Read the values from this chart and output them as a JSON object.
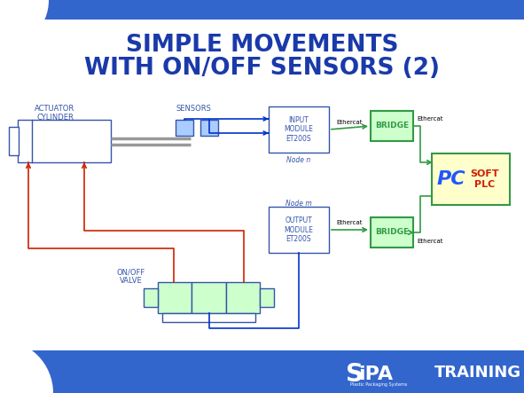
{
  "title_line1": "SIMPLE MOVEMENTS",
  "title_line2": "WITH ON/OFF SENSORS (2)",
  "title_color": "#1a3aaa",
  "bg_color": "#ffffff",
  "blue_banner_color": "#3366cc",
  "actuator_label": "ACTUATOR\nCYLINDER",
  "sensors_label": "SENSORS",
  "input_module_label": "INPUT\nMODULE\nET200S",
  "output_module_label": "OUTPUT\nMODULE\nET200S",
  "bridge_label": "BRIDGE",
  "on_off_valve_label": "ON/OFF\nVALVE",
  "node_n_label": "Node n",
  "node_m_label": "Node m",
  "ethercat_label": "Ethercat",
  "pc_label": "PC",
  "soft_plc_label": "SOFT\nPLC",
  "training_label": "TRAINING",
  "box_blue_stroke": "#3355aa",
  "box_green_fill": "#ccffcc",
  "box_green_stroke": "#339944",
  "sensor_fill": "#aaccff",
  "soft_plc_fill": "#ffffcc",
  "red_line": "#cc2200",
  "arrow_blue": "#0033cc",
  "gray_rod": "#999999"
}
